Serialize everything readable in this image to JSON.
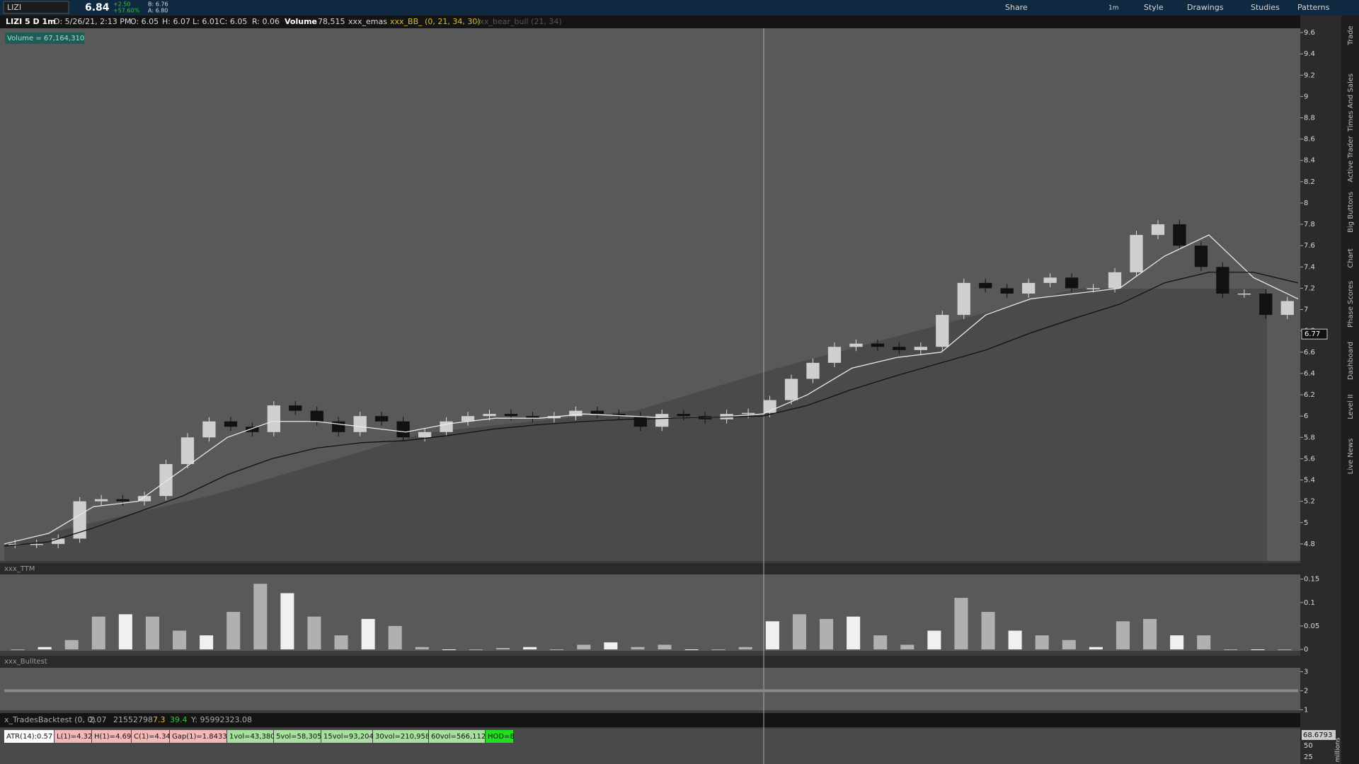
{
  "top_bar": {
    "symbol": "LIZI",
    "last": "6.84",
    "change": "+2.50",
    "change_pct": "+57.60%",
    "bid": "B: 6.76",
    "ask": "A: 6.80",
    "aggregation": "1m",
    "buttons": [
      "Share",
      "Style",
      "Drawings",
      "Studies",
      "Patterns"
    ]
  },
  "info_bar": [
    "LIZI 5 D 1m",
    "D: 5/26/21, 2:13 PM",
    "O: 6.05",
    "H: 6.07",
    "L: 6.01",
    "C: 6.05",
    "R: 0.06",
    "Volume",
    "78,515",
    "xxx_emas",
    "xxx_BB_ (0, 21, 34, 30)",
    "xxx_bear_bull (21, 34)"
  ],
  "volume_label": "Volume = 67,164,310",
  "side_tabs": [
    "Trade",
    "Times And Sales",
    "Active Trader",
    "Big Buttons",
    "Chart",
    "Phase Scores",
    "Dashboard",
    "Level II",
    "Live News"
  ],
  "price_chart": {
    "type": "candlestick",
    "ylim": [
      4.64,
      9.64
    ],
    "yticks": [
      4.8,
      5,
      5.2,
      5.4,
      5.6,
      5.8,
      6,
      6.2,
      6.4,
      6.6,
      6.8,
      7,
      7.2,
      7.4,
      7.6,
      7.8,
      8,
      8.2,
      8.4,
      8.6,
      8.8,
      9,
      9.2,
      9.4,
      9.6
    ],
    "price_marker": 6.77,
    "closes": [
      4.8,
      4.8,
      4.85,
      5.2,
      5.22,
      5.2,
      5.25,
      5.55,
      5.8,
      5.95,
      5.9,
      5.85,
      6.1,
      6.05,
      5.95,
      5.85,
      6.0,
      5.95,
      5.8,
      5.85,
      5.95,
      6.0,
      6.02,
      6.0,
      5.98,
      6.0,
      6.05,
      6.02,
      6.0,
      5.9,
      6.02,
      6.0,
      5.97,
      6.02,
      6.03,
      6.15,
      6.35,
      6.5,
      6.65,
      6.68,
      6.65,
      6.62,
      6.65,
      6.95,
      7.25,
      7.2,
      7.15,
      7.25,
      7.3,
      7.2,
      7.2,
      7.35,
      7.7,
      7.8,
      7.6,
      7.4,
      7.15,
      7.15,
      6.95,
      7.08
    ],
    "ema_fast": [
      4.8,
      4.9,
      5.15,
      5.2,
      5.5,
      5.8,
      5.95,
      5.95,
      5.9,
      5.85,
      5.93,
      5.98,
      5.98,
      6.02,
      6.0,
      5.98,
      5.99,
      6.02,
      6.2,
      6.45,
      6.55,
      6.6,
      6.95,
      7.1,
      7.15,
      7.2,
      7.5,
      7.7,
      7.3,
      7.1
    ],
    "ema_slow": [
      4.78,
      4.82,
      4.95,
      5.1,
      5.25,
      5.45,
      5.6,
      5.7,
      5.75,
      5.77,
      5.82,
      5.88,
      5.92,
      5.95,
      5.97,
      5.98,
      5.99,
      6.0,
      6.1,
      6.25,
      6.38,
      6.5,
      6.62,
      6.78,
      6.92,
      7.05,
      7.25,
      7.35,
      7.35,
      7.25
    ]
  },
  "ttm_panel": {
    "title": "xxx_TTM",
    "type": "bar",
    "ylim": [
      -0.003,
      0.16
    ],
    "yticks": [
      0,
      0.05,
      0.1,
      0.15
    ],
    "values": [
      0,
      0.005,
      0.02,
      0.07,
      0.075,
      0.07,
      0.04,
      0.03,
      0.08,
      0.14,
      0.12,
      0.07,
      0.03,
      0.065,
      0.05,
      0.005,
      0,
      0,
      0.003,
      0.005,
      0,
      0.01,
      0.015,
      0.005,
      0.01,
      0,
      0,
      0.005,
      0.06,
      0.075,
      0.065,
      0.07,
      0.03,
      0.01,
      0.04,
      0.11,
      0.08,
      0.04,
      0.03,
      0.02,
      0.005,
      0.06,
      0.065,
      0.03,
      0.03,
      0,
      0,
      0
    ]
  },
  "bulltest_panel": {
    "title": "xxx_Bulltest",
    "ylim": [
      0.98,
      3.2
    ],
    "yticks": [
      1,
      2,
      3
    ],
    "level": 2
  },
  "backtest_row": [
    "x_TradesBacktest (0, 0)",
    "2.07",
    "21552798",
    "7.3",
    "39.4",
    "Y: 95992323.08"
  ],
  "labels": [
    "ATR(14):0.57",
    "L(1)=4.32",
    "H(1)=4.69",
    "C(1)=4.34",
    "Gap(1)=1.8433",
    "1vol=43,380",
    "5vol=58,305",
    "15vol=93,204",
    "30vol=210,958",
    "60vol=566,112",
    "HOD=8"
  ],
  "volume_axis": {
    "marker": "68.6793",
    "yticks": [
      50,
      25
    ],
    "unit": "millions"
  }
}
